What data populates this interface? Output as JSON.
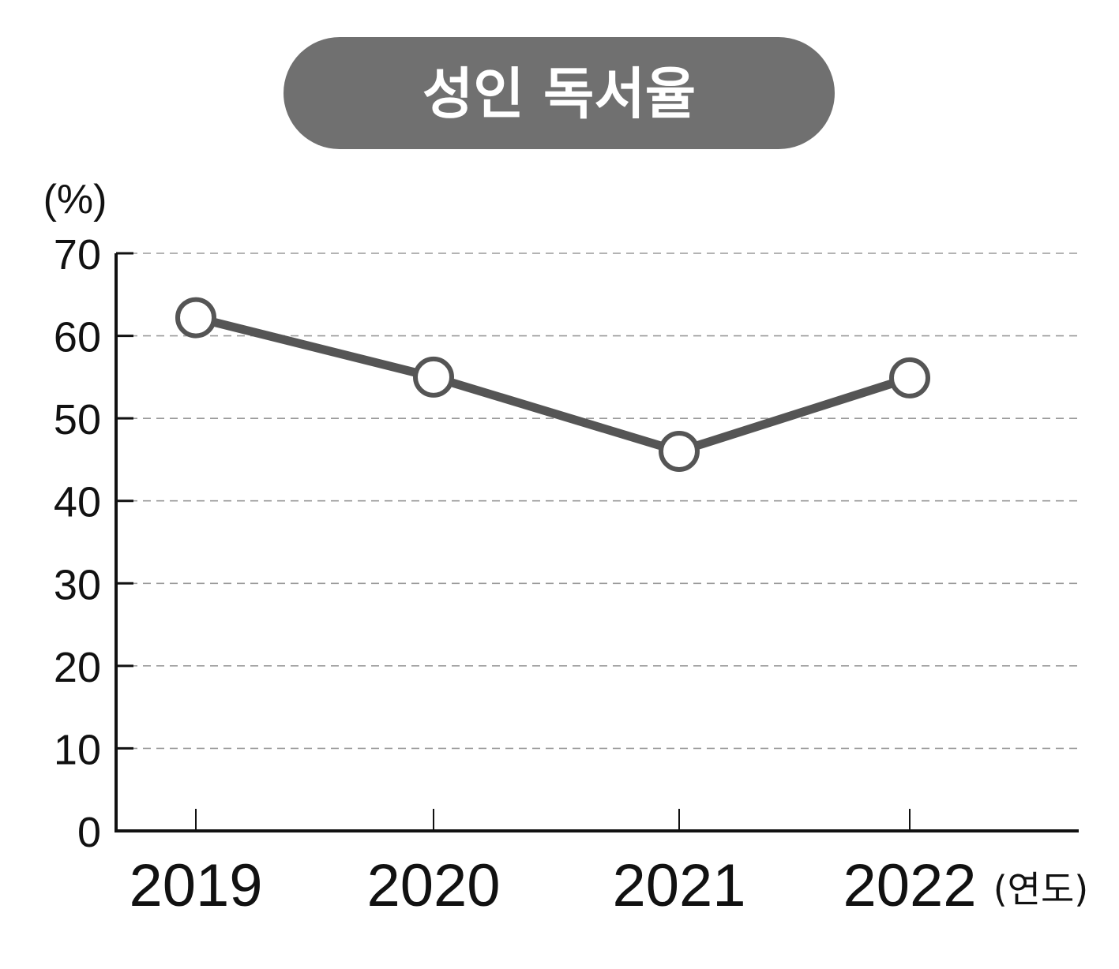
{
  "chart_data": {
    "type": "line",
    "title": "성인 독서율",
    "ylabel": "(%)",
    "xlabel": "(연도)",
    "ylim": [
      0,
      70
    ],
    "yticks": [
      "0",
      "10",
      "20",
      "30",
      "40",
      "50",
      "60",
      "70"
    ],
    "categories": [
      "2019",
      "2020",
      "2021",
      "2022"
    ],
    "series": [
      {
        "values": [
          62.2,
          55.0,
          46.0,
          54.9
        ]
      }
    ],
    "grid": true,
    "colors": {
      "title_bg": "#707070",
      "line": "#555555",
      "marker_fill": "#ffffff",
      "axis": "#111111",
      "grid": "#9a9a9a"
    }
  }
}
